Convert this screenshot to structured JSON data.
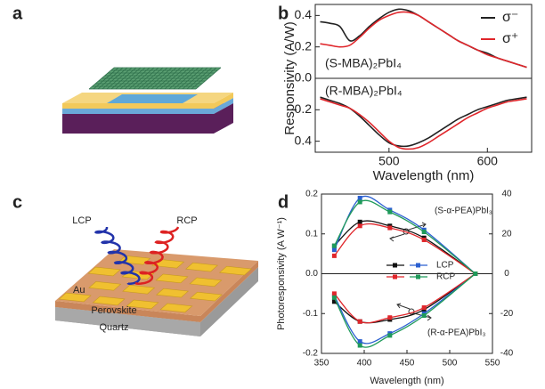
{
  "panel_labels": [
    "a",
    "b",
    "c",
    "d"
  ],
  "diagram": {
    "beams": [
      "LCP",
      "RCP"
    ],
    "layers": [
      "Au",
      "Perovskite",
      "Quartz"
    ]
  },
  "chart_data": [
    {
      "type": "line",
      "xlabel": "Wavelength (nm)",
      "ylabel": "Responsivity (A/W)",
      "x": [
        430,
        440,
        450,
        460,
        470,
        480,
        490,
        500,
        510,
        520,
        530,
        540,
        550,
        560,
        570,
        580,
        590,
        600,
        610,
        620,
        630,
        640
      ],
      "xlim": [
        425,
        645
      ],
      "xticks": [
        500,
        600
      ],
      "ylim": [
        -0.47,
        0.47
      ],
      "yticks": [
        {
          "value": -0.4,
          "label": "0.4"
        },
        {
          "value": -0.2,
          "label": "0.2"
        },
        {
          "value": 0,
          "label": "0.0"
        },
        0.2,
        0.4
      ],
      "annotations": [
        "(S-MBA)₂PbI₄",
        "(R-MBA)₂PbI₄"
      ],
      "series": [
        {
          "name": "σ⁻",
          "color": "#222222",
          "curves": [
            {
              "values": [
                0.36,
                0.35,
                0.33,
                0.24,
                0.27,
                0.33,
                0.38,
                0.42,
                0.44,
                0.43,
                0.4,
                0.36,
                0.32,
                0.28,
                0.24,
                0.21,
                0.18,
                0.16,
                0.13,
                0.11,
                0.09,
                0.07
              ]
            },
            {
              "values": [
                -0.12,
                -0.14,
                -0.16,
                -0.19,
                -0.24,
                -0.3,
                -0.36,
                -0.41,
                -0.43,
                -0.43,
                -0.41,
                -0.38,
                -0.34,
                -0.3,
                -0.26,
                -0.23,
                -0.2,
                -0.18,
                -0.16,
                -0.14,
                -0.13,
                -0.12
              ]
            }
          ]
        },
        {
          "name": "σ⁺",
          "color": "#e0262b",
          "curves": [
            {
              "values": [
                0.22,
                0.21,
                0.2,
                0.21,
                0.26,
                0.32,
                0.37,
                0.4,
                0.42,
                0.42,
                0.4,
                0.36,
                0.32,
                0.28,
                0.24,
                0.21,
                0.18,
                0.15,
                0.13,
                0.11,
                0.09,
                0.07
              ]
            },
            {
              "values": [
                -0.13,
                -0.15,
                -0.17,
                -0.19,
                -0.23,
                -0.28,
                -0.34,
                -0.4,
                -0.44,
                -0.45,
                -0.44,
                -0.41,
                -0.37,
                -0.33,
                -0.29,
                -0.25,
                -0.22,
                -0.19,
                -0.17,
                -0.15,
                -0.14,
                -0.13
              ]
            }
          ]
        }
      ]
    },
    {
      "type": "line",
      "xlabel": "Wavelength (nm)",
      "ylabel": "Photoresponsivity (A W⁻¹)",
      "x": [
        365,
        395,
        430,
        470,
        530
      ],
      "xlim": [
        350,
        550
      ],
      "xticks": [
        350,
        400,
        450,
        500,
        550
      ],
      "ylim": [
        -0.2,
        0.2
      ],
      "yticks": [
        -0.2,
        -0.1,
        {
          "value": 0,
          "label": "0.0"
        },
        0.1,
        0.2
      ],
      "y2lim": [
        -40,
        40
      ],
      "y2ticks": [
        -40,
        -20,
        0,
        20,
        40
      ],
      "annotations": [
        "(S-α-PEA)PbI₃",
        "(R-α-PEA)PbI₃"
      ],
      "series": [
        {
          "name": "LCP",
          "curves": [
            {
              "axis": "y",
              "color": "#111111",
              "values": [
                0.07,
                0.13,
                0.12,
                0.09,
                0
              ]
            },
            {
              "axis": "y2",
              "color": "#2a5fd0",
              "values": [
                12,
                38,
                32,
                22,
                0
              ]
            },
            {
              "axis": "y",
              "color": "#111111",
              "values": [
                -0.07,
                -0.12,
                -0.115,
                -0.09,
                0
              ]
            },
            {
              "axis": "y2",
              "color": "#2a5fd0",
              "values": [
                -11,
                -34,
                -30,
                -20,
                0
              ]
            }
          ]
        },
        {
          "name": "RCP",
          "curves": [
            {
              "axis": "y",
              "color": "#e0262b",
              "values": [
                0.045,
                0.12,
                0.115,
                0.085,
                0
              ]
            },
            {
              "axis": "y2",
              "color": "#1f9a5a",
              "values": [
                14,
                36,
                31,
                21,
                0
              ]
            },
            {
              "axis": "y",
              "color": "#e0262b",
              "values": [
                -0.05,
                -0.12,
                -0.11,
                -0.085,
                0
              ]
            },
            {
              "axis": "y2",
              "color": "#1f9a5a",
              "values": [
                -12,
                -36,
                -31,
                -21,
                0
              ]
            }
          ]
        }
      ]
    }
  ]
}
